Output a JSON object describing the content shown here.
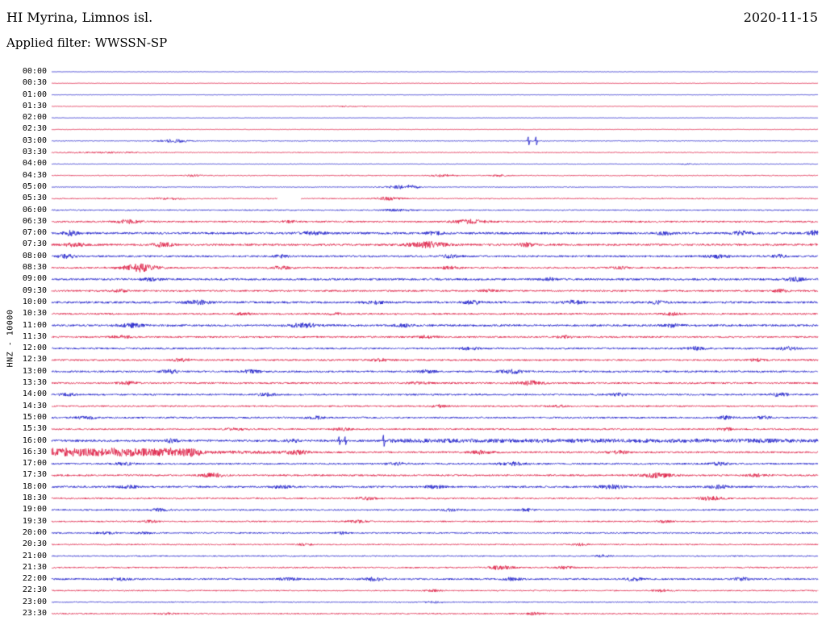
{
  "header": {
    "station": "HI Myrina, Limnos isl.",
    "date": "2020-11-15",
    "filter": "Applied filter: WWSSN-SP"
  },
  "axis": {
    "left_label": "HNZ - 10000"
  },
  "colors": {
    "blue": "#1616c8",
    "red": "#dc143c"
  },
  "chart_data": {
    "type": "line",
    "subtype": "helicorder-seismogram",
    "title": "Daily helicorder record, station HI Myrina (Limnos isl.), channel HNZ, scale 10000, filter WWSSN-SP, 2020-11-15",
    "row_minutes": 30,
    "time_range": [
      "00:00",
      "23:30"
    ],
    "legend": "rows alternate blue/red, each row = 30 minutes",
    "rows": [
      {
        "time": "00:00",
        "color": "blue",
        "base": 0.25,
        "bursts": []
      },
      {
        "time": "00:30",
        "color": "red",
        "base": 0.25,
        "bursts": []
      },
      {
        "time": "01:00",
        "color": "blue",
        "base": 0.25,
        "bursts": []
      },
      {
        "time": "01:30",
        "color": "red",
        "base": 0.3,
        "bursts": [
          [
            0.38,
            0.03,
            0.5
          ]
        ]
      },
      {
        "time": "02:00",
        "color": "blue",
        "base": 0.25,
        "bursts": []
      },
      {
        "time": "02:30",
        "color": "red",
        "base": 0.3,
        "bursts": []
      },
      {
        "time": "03:00",
        "color": "blue",
        "base": 0.4,
        "bursts": [
          [
            0.16,
            0.02,
            1.8
          ]
        ],
        "spikes": [
          [
            0.622,
            5
          ],
          [
            0.632,
            5
          ]
        ]
      },
      {
        "time": "03:30",
        "color": "red",
        "base": 0.5,
        "bursts": [
          [
            0.07,
            0.05,
            0.6
          ]
        ]
      },
      {
        "time": "04:00",
        "color": "blue",
        "base": 0.3,
        "bursts": [
          [
            0.83,
            0.01,
            0.8
          ]
        ]
      },
      {
        "time": "04:30",
        "color": "red",
        "base": 0.5,
        "bursts": [
          [
            0.185,
            0.01,
            1.2
          ],
          [
            0.51,
            0.015,
            1.5
          ],
          [
            0.585,
            0.01,
            1.0
          ]
        ]
      },
      {
        "time": "05:00",
        "color": "blue",
        "base": 0.4,
        "bursts": [
          [
            0.455,
            0.02,
            1.8
          ],
          [
            0.47,
            0.01,
            1.2
          ]
        ]
      },
      {
        "time": "05:30",
        "color": "red",
        "base": 0.6,
        "bursts": [
          [
            0.155,
            0.02,
            0.8
          ],
          [
            0.44,
            0.015,
            2.0
          ]
        ],
        "gaps": [
          [
            0.295,
            0.325
          ]
        ]
      },
      {
        "time": "06:00",
        "color": "blue",
        "base": 0.7,
        "bursts": [
          [
            0.45,
            0.02,
            1.2
          ]
        ]
      },
      {
        "time": "06:30",
        "color": "red",
        "base": 1.0,
        "bursts": [
          [
            0.1,
            0.015,
            2.0
          ],
          [
            0.31,
            0.01,
            1.2
          ],
          [
            0.545,
            0.02,
            2.2
          ]
        ]
      },
      {
        "time": "07:00",
        "color": "blue",
        "base": 1.3,
        "bursts": [
          [
            0.025,
            0.01,
            2.5
          ],
          [
            0.34,
            0.015,
            1.5
          ],
          [
            0.5,
            0.01,
            1.5
          ],
          [
            0.8,
            0.01,
            1.8
          ],
          [
            0.9,
            0.012,
            2.2
          ],
          [
            0.995,
            0.008,
            2.5
          ]
        ]
      },
      {
        "time": "07:30",
        "color": "red",
        "base": 1.2,
        "bursts": [
          [
            0.03,
            0.012,
            2.0
          ],
          [
            0.145,
            0.012,
            2.5
          ],
          [
            0.49,
            0.025,
            3.2
          ],
          [
            0.62,
            0.012,
            1.8
          ]
        ]
      },
      {
        "time": "08:00",
        "color": "blue",
        "base": 1.1,
        "bursts": [
          [
            0.02,
            0.01,
            2.2
          ],
          [
            0.3,
            0.01,
            1.4
          ],
          [
            0.52,
            0.012,
            1.5
          ],
          [
            0.87,
            0.015,
            1.8
          ],
          [
            0.95,
            0.01,
            1.5
          ]
        ]
      },
      {
        "time": "08:30",
        "color": "red",
        "base": 1.0,
        "bursts": [
          [
            0.115,
            0.022,
            4.5
          ],
          [
            0.3,
            0.012,
            1.6
          ],
          [
            0.52,
            0.012,
            1.5
          ],
          [
            0.74,
            0.01,
            1.2
          ]
        ]
      },
      {
        "time": "09:00",
        "color": "blue",
        "base": 1.2,
        "bursts": [
          [
            0.13,
            0.012,
            1.6
          ],
          [
            0.65,
            0.01,
            1.5
          ],
          [
            0.97,
            0.012,
            2.0
          ]
        ]
      },
      {
        "time": "09:30",
        "color": "red",
        "base": 1.0,
        "bursts": [
          [
            0.09,
            0.01,
            1.4
          ],
          [
            0.57,
            0.01,
            1.3
          ],
          [
            0.95,
            0.01,
            1.5
          ]
        ]
      },
      {
        "time": "10:00",
        "color": "blue",
        "base": 1.3,
        "bursts": [
          [
            0.19,
            0.015,
            2.2
          ],
          [
            0.42,
            0.012,
            1.6
          ],
          [
            0.55,
            0.012,
            1.8
          ],
          [
            0.68,
            0.012,
            2.0
          ],
          [
            0.79,
            0.01,
            1.5
          ]
        ]
      },
      {
        "time": "10:30",
        "color": "red",
        "base": 1.0,
        "bursts": [
          [
            0.25,
            0.01,
            1.4
          ],
          [
            0.37,
            0.01,
            1.3
          ],
          [
            0.81,
            0.01,
            1.5
          ]
        ]
      },
      {
        "time": "11:00",
        "color": "blue",
        "base": 1.2,
        "bursts": [
          [
            0.105,
            0.015,
            2.0
          ],
          [
            0.33,
            0.018,
            2.4
          ],
          [
            0.46,
            0.012,
            1.6
          ],
          [
            0.81,
            0.012,
            1.8
          ]
        ]
      },
      {
        "time": "11:30",
        "color": "red",
        "base": 1.0,
        "bursts": [
          [
            0.09,
            0.012,
            1.5
          ],
          [
            0.49,
            0.012,
            1.6
          ],
          [
            0.67,
            0.01,
            1.3
          ]
        ]
      },
      {
        "time": "12:00",
        "color": "blue",
        "base": 1.0,
        "bursts": [
          [
            0.545,
            0.012,
            1.6
          ],
          [
            0.84,
            0.012,
            1.8
          ],
          [
            0.96,
            0.012,
            1.9
          ]
        ]
      },
      {
        "time": "12:30",
        "color": "red",
        "base": 1.0,
        "bursts": [
          [
            0.17,
            0.012,
            1.6
          ],
          [
            0.43,
            0.012,
            1.5
          ],
          [
            0.92,
            0.01,
            1.4
          ]
        ]
      },
      {
        "time": "13:00",
        "color": "blue",
        "base": 1.1,
        "bursts": [
          [
            0.155,
            0.012,
            1.8
          ],
          [
            0.26,
            0.012,
            1.8
          ],
          [
            0.49,
            0.012,
            1.5
          ],
          [
            0.6,
            0.015,
            2.0
          ]
        ]
      },
      {
        "time": "13:30",
        "color": "red",
        "base": 1.0,
        "bursts": [
          [
            0.1,
            0.012,
            1.5
          ],
          [
            0.48,
            0.012,
            1.4
          ],
          [
            0.625,
            0.018,
            2.4
          ]
        ]
      },
      {
        "time": "14:00",
        "color": "blue",
        "base": 1.0,
        "bursts": [
          [
            0.02,
            0.01,
            1.8
          ],
          [
            0.28,
            0.012,
            1.6
          ],
          [
            0.74,
            0.012,
            1.6
          ],
          [
            0.95,
            0.012,
            1.8
          ]
        ]
      },
      {
        "time": "14:30",
        "color": "red",
        "base": 0.9,
        "bursts": [
          [
            0.505,
            0.01,
            1.4
          ],
          [
            0.66,
            0.01,
            1.3
          ]
        ]
      },
      {
        "time": "15:00",
        "color": "blue",
        "base": 1.0,
        "bursts": [
          [
            0.045,
            0.012,
            1.6
          ],
          [
            0.345,
            0.012,
            1.5
          ],
          [
            0.88,
            0.012,
            1.8
          ],
          [
            0.93,
            0.01,
            1.6
          ]
        ]
      },
      {
        "time": "15:30",
        "color": "red",
        "base": 0.9,
        "bursts": [
          [
            0.24,
            0.012,
            1.5
          ],
          [
            0.38,
            0.012,
            1.4
          ],
          [
            0.88,
            0.01,
            1.4
          ]
        ]
      },
      {
        "time": "16:00",
        "color": "blue",
        "base": 1.2,
        "bursts": [
          [
            0.155,
            0.01,
            1.8
          ],
          [
            0.315,
            0.01,
            1.6
          ],
          [
            0.52,
            0.03,
            1.5
          ],
          [
            0.72,
            0.03,
            1.2
          ],
          [
            0.93,
            0.04,
            1.5
          ]
        ],
        "bands": [
          [
            0.44,
            1.0,
            2.6
          ]
        ],
        "spikes": [
          [
            0.375,
            5
          ],
          [
            0.383,
            5
          ],
          [
            0.433,
            7
          ]
        ]
      },
      {
        "time": "16:30",
        "color": "red",
        "base": 1.1,
        "bursts": [
          [
            0.32,
            0.02,
            2.0
          ],
          [
            0.56,
            0.015,
            1.8
          ],
          [
            0.74,
            0.012,
            1.6
          ]
        ],
        "bands": [
          [
            0.0,
            0.195,
            5.8
          ],
          [
            0.195,
            0.3,
            2.2
          ]
        ]
      },
      {
        "time": "17:00",
        "color": "blue",
        "base": 1.0,
        "bursts": [
          [
            0.095,
            0.012,
            1.6
          ],
          [
            0.45,
            0.012,
            1.4
          ],
          [
            0.6,
            0.015,
            2.0
          ],
          [
            0.87,
            0.012,
            1.6
          ]
        ]
      },
      {
        "time": "17:30",
        "color": "red",
        "base": 1.0,
        "bursts": [
          [
            0.21,
            0.015,
            2.2
          ],
          [
            0.79,
            0.02,
            2.6
          ],
          [
            0.92,
            0.012,
            1.6
          ]
        ]
      },
      {
        "time": "18:00",
        "color": "blue",
        "base": 1.1,
        "bursts": [
          [
            0.1,
            0.012,
            1.6
          ],
          [
            0.3,
            0.012,
            1.7
          ],
          [
            0.5,
            0.012,
            1.6
          ],
          [
            0.73,
            0.015,
            2.2
          ],
          [
            0.87,
            0.012,
            2.0
          ]
        ]
      },
      {
        "time": "18:30",
        "color": "red",
        "base": 0.9,
        "bursts": [
          [
            0.41,
            0.012,
            1.4
          ],
          [
            0.86,
            0.015,
            2.2
          ]
        ]
      },
      {
        "time": "19:00",
        "color": "blue",
        "base": 0.9,
        "bursts": [
          [
            0.14,
            0.012,
            1.5
          ],
          [
            0.52,
            0.01,
            1.3
          ],
          [
            0.62,
            0.01,
            1.4
          ]
        ]
      },
      {
        "time": "19:30",
        "color": "red",
        "base": 0.8,
        "bursts": [
          [
            0.13,
            0.01,
            1.3
          ],
          [
            0.4,
            0.012,
            1.5
          ],
          [
            0.8,
            0.01,
            1.3
          ]
        ]
      },
      {
        "time": "20:00",
        "color": "blue",
        "base": 0.8,
        "bursts": [
          [
            0.07,
            0.012,
            1.4
          ],
          [
            0.12,
            0.01,
            1.3
          ],
          [
            0.38,
            0.01,
            1.2
          ]
        ]
      },
      {
        "time": "20:30",
        "color": "red",
        "base": 0.7,
        "bursts": [
          [
            0.33,
            0.01,
            1.1
          ],
          [
            0.69,
            0.01,
            1.1
          ]
        ]
      },
      {
        "time": "21:00",
        "color": "blue",
        "base": 0.7,
        "bursts": [
          [
            0.72,
            0.01,
            1.2
          ]
        ]
      },
      {
        "time": "21:30",
        "color": "red",
        "base": 0.8,
        "bursts": [
          [
            0.585,
            0.015,
            2.2
          ],
          [
            0.67,
            0.012,
            1.6
          ]
        ]
      },
      {
        "time": "22:00",
        "color": "blue",
        "base": 1.0,
        "bursts": [
          [
            0.09,
            0.012,
            1.5
          ],
          [
            0.31,
            0.012,
            1.6
          ],
          [
            0.42,
            0.015,
            1.9
          ],
          [
            0.6,
            0.012,
            1.6
          ],
          [
            0.76,
            0.012,
            1.7
          ],
          [
            0.9,
            0.012,
            1.6
          ]
        ]
      },
      {
        "time": "22:30",
        "color": "red",
        "base": 0.7,
        "bursts": [
          [
            0.5,
            0.01,
            1.2
          ],
          [
            0.795,
            0.01,
            1.2
          ]
        ]
      },
      {
        "time": "23:00",
        "color": "blue",
        "base": 0.6,
        "bursts": [
          [
            0.5,
            0.01,
            1.0
          ]
        ]
      },
      {
        "time": "23:30",
        "color": "red",
        "base": 0.7,
        "bursts": [
          [
            0.15,
            0.01,
            1.1
          ],
          [
            0.63,
            0.012,
            1.3
          ]
        ]
      }
    ]
  }
}
